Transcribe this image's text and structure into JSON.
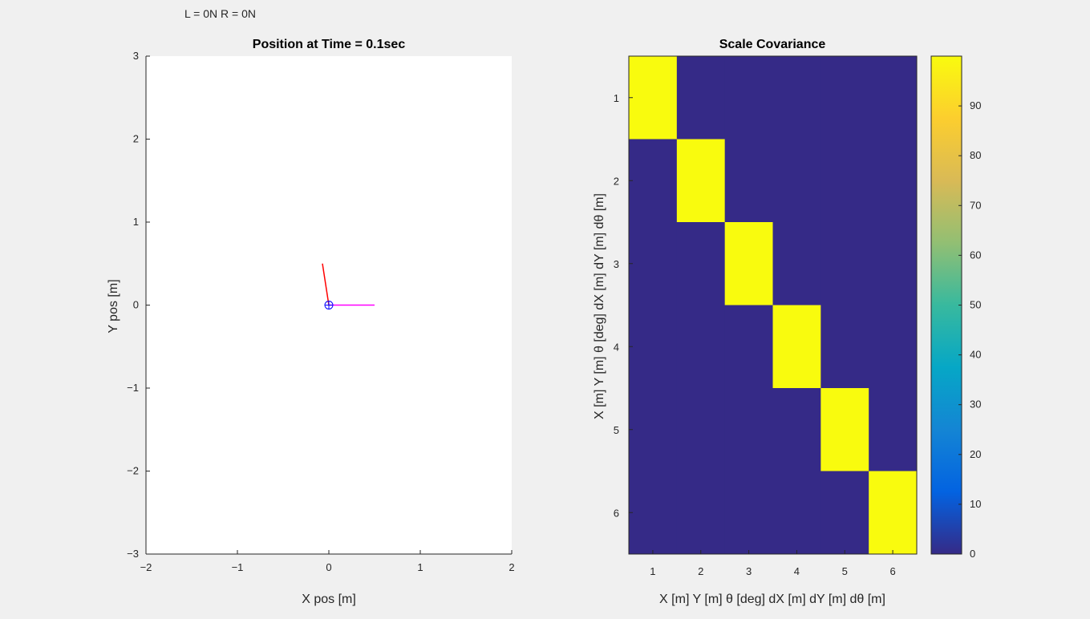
{
  "annotation": "L = 0N R = 0N",
  "chart_data": [
    {
      "type": "line",
      "title": "Position at Time = 0.1sec",
      "xlabel": "X pos [m]",
      "ylabel": "Y pos [m]",
      "xlim": [
        -2,
        2
      ],
      "ylim": [
        -3,
        3
      ],
      "xticks": [
        -2,
        -1,
        0,
        1,
        2
      ],
      "yticks": [
        -3,
        -2,
        -1,
        0,
        1,
        2,
        3
      ],
      "grid": false,
      "series": [
        {
          "values": [
            [
              0,
              0
            ],
            [
              -0.07,
              0.5
            ]
          ],
          "color": "#ff0000"
        },
        {
          "values": [
            [
              0,
              0
            ],
            [
              0.5,
              0
            ]
          ],
          "color": "#ff00ff"
        }
      ],
      "marker": {
        "type": "circle-plus",
        "x": 0,
        "y": 0,
        "color": "#0000ff"
      }
    },
    {
      "type": "heatmap",
      "title": "Scale Covariance",
      "xlabel": "X [m] Y [m] θ [deg] dX [m] dY [m] dθ [m]",
      "ylabel": "X [m] Y [m] θ [deg] dX [m] dY [m] dθ [m]",
      "x_categories": [
        "1",
        "2",
        "3",
        "4",
        "5",
        "6"
      ],
      "y_categories": [
        "1",
        "2",
        "3",
        "4",
        "5",
        "6"
      ],
      "matrix": [
        [
          100,
          0,
          0,
          0,
          0,
          0
        ],
        [
          0,
          100,
          0,
          0,
          0,
          0
        ],
        [
          0,
          0,
          100,
          0,
          0,
          0
        ],
        [
          0,
          0,
          0,
          100,
          0,
          0
        ],
        [
          0,
          0,
          0,
          0,
          100,
          0
        ],
        [
          0,
          0,
          0,
          0,
          0,
          100
        ]
      ],
      "colormap": "parula",
      "colorbar": {
        "range": [
          0,
          100
        ],
        "ticks": [
          0,
          10,
          20,
          30,
          40,
          50,
          60,
          70,
          80,
          90
        ]
      }
    }
  ]
}
